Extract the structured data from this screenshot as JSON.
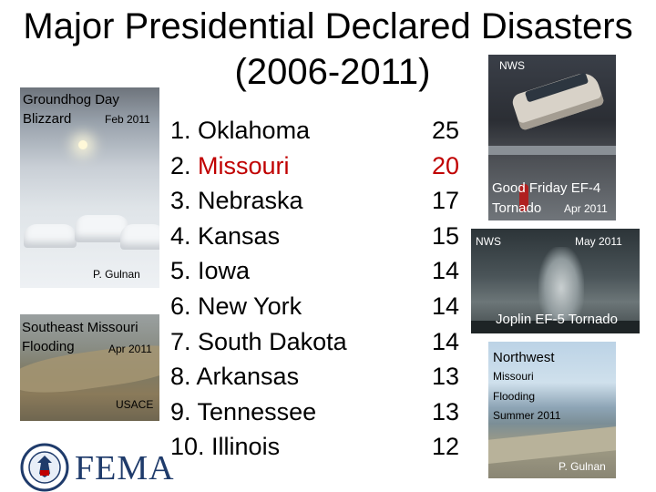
{
  "title": {
    "line1": "Major Presidential Declared Disasters",
    "line2": "(2006-2011)"
  },
  "photos": {
    "blizzard": {
      "caption_line1": "Groundhog Day",
      "caption_line2": "Blizzard",
      "date": "Feb 2011",
      "credit": "P. Gulnan"
    },
    "se_flooding": {
      "caption_line1": "Southeast Missouri",
      "caption_line2": "Flooding",
      "date": "Apr 2011",
      "credit": "USACE"
    },
    "good_friday": {
      "credit": "NWS",
      "caption_line1": "Good Friday EF-4",
      "caption_line2": "Tornado",
      "date": "Apr 2011"
    },
    "joplin": {
      "credit": "NWS",
      "date": "May 2011",
      "caption": "Joplin EF-5 Tornado"
    },
    "nw_flooding": {
      "caption_line1": "Northwest",
      "caption_line2": "Missouri",
      "caption_line3": "Flooding",
      "date": "Summer 2011",
      "credit": "P. Gulnan"
    }
  },
  "ranking": [
    {
      "label": "1. Oklahoma",
      "value": "25",
      "highlight": false
    },
    {
      "label": "2. Missouri",
      "value": "20",
      "highlight": true
    },
    {
      "label": "3. Nebraska",
      "value": "17",
      "highlight": false
    },
    {
      "label": "4. Kansas",
      "value": "15",
      "highlight": false
    },
    {
      "label": "5. Iowa",
      "value": "14",
      "highlight": false
    },
    {
      "label": "6. New York",
      "value": "14",
      "highlight": false
    },
    {
      "label": "7. South Dakota",
      "value": "14",
      "highlight": false
    },
    {
      "label": "8. Arkansas",
      "value": "13",
      "highlight": false
    },
    {
      "label": "9. Tennessee",
      "value": "13",
      "highlight": false
    },
    {
      "label": "10. Illinois",
      "value": "12",
      "highlight": false
    }
  ],
  "colors": {
    "highlight": "#c00000",
    "fema_blue": "#1f3b6b"
  },
  "logo": {
    "text": "FEMA",
    "icon": "dhs-seal-icon"
  }
}
